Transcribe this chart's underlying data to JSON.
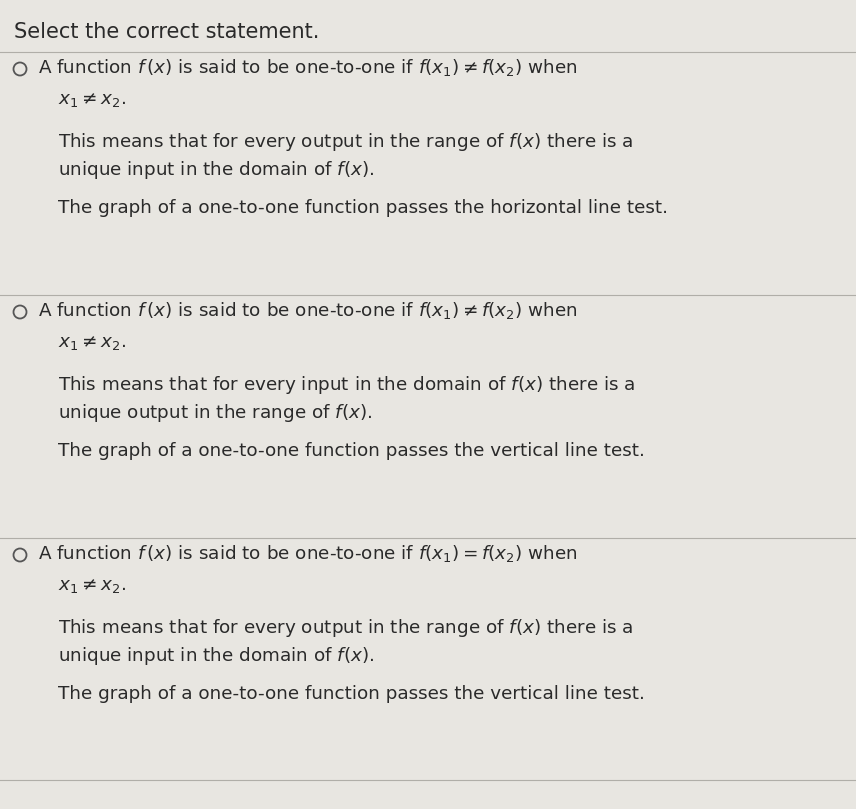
{
  "title": "Select the correct statement.",
  "bg_color": "#e8e6e1",
  "text_color": "#2a2a2a",
  "sep_color": "#b0aea8",
  "circle_color": "#555555",
  "figsize": [
    8.56,
    8.09
  ],
  "dpi": 100,
  "title_fs": 15,
  "body_fs": 13.2,
  "math_fs": 13.2,
  "options": [
    {
      "line1_text": "A function $f\\,(x)$ is said to be one-to-one if $f(x_1) \\neq f(x_2)$ when",
      "line2_text": "$x_1 \\neq x_2.$",
      "line3_text": "This means that for every output in the range of $f(x)$ there is a",
      "line4_text": "unique input in the domain of $f(x).$",
      "line5_text": "The graph of a one-to-one function passes the horizontal line test."
    },
    {
      "line1_text": "A function $f\\,(x)$ is said to be one-to-one if $f(x_1) \\neq f(x_2)$ when",
      "line2_text": "$x_1 \\neq x_2.$",
      "line3_text": "This means that for every input in the domain of $f(x)$ there is a",
      "line4_text": "unique output in the range of $f(x).$",
      "line5_text": "The graph of a one-to-one function passes the vertical line test."
    },
    {
      "line1_text": "A function $f\\,(x)$ is said to be one-to-one if $f(x_1) = f(x_2)$ when",
      "line2_text": "$x_1 \\neq x_2.$",
      "line3_text": "This means that for every output in the range of $f(x)$ there is a",
      "line4_text": "unique input in the domain of $f(x).$",
      "line5_text": "The graph of a one-to-one function passes the vertical line test."
    }
  ]
}
